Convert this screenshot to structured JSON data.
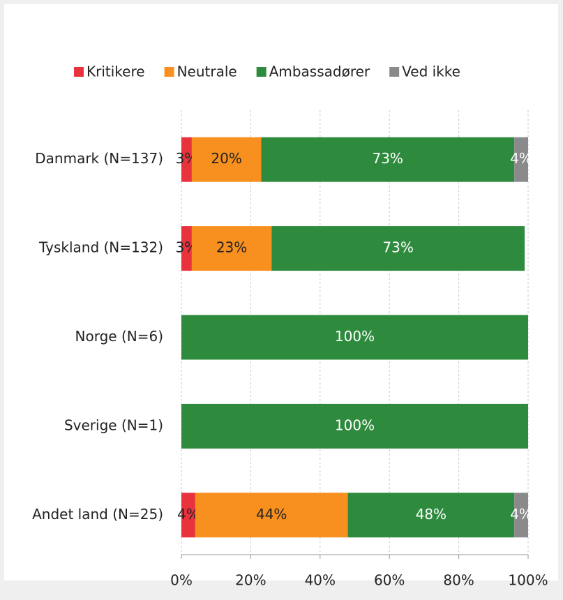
{
  "chart_data": {
    "type": "stacked_bar_horizontal",
    "categories": [
      "Danmark (N=137)",
      "Tyskland (N=132)",
      "Norge (N=6)",
      "Sverige (N=1)",
      "Andet land (N=25)"
    ],
    "series": [
      {
        "name": "Kritikere",
        "color": "#e8323c",
        "values": [
          3,
          3,
          null,
          null,
          4
        ],
        "value_labels": [
          "3%",
          "3%",
          null,
          null,
          "4%"
        ]
      },
      {
        "name": "Neutrale",
        "color": "#f7901e",
        "values": [
          20,
          23,
          null,
          null,
          44
        ],
        "value_labels": [
          "20%",
          "23%",
          null,
          null,
          "44%"
        ]
      },
      {
        "name": "Ambassadører",
        "color": "#2e8b3e",
        "values": [
          73,
          73,
          100,
          100,
          48
        ],
        "value_labels": [
          "73%",
          "73%",
          "100%",
          "100%",
          "48%"
        ]
      },
      {
        "name": "Ved ikke",
        "color": "#8a8a8c",
        "values": [
          4,
          null,
          null,
          null,
          4
        ],
        "value_labels": [
          "4%",
          null,
          null,
          null,
          "4%"
        ]
      }
    ],
    "xlim": [
      0,
      100
    ],
    "xticks": [
      {
        "value": 0,
        "label": "0%"
      },
      {
        "value": 20,
        "label": "20%"
      },
      {
        "value": 40,
        "label": "40%"
      },
      {
        "value": 60,
        "label": "60%"
      },
      {
        "value": 80,
        "label": "80%"
      },
      {
        "value": 100,
        "label": "100%"
      }
    ],
    "grid": true,
    "legend": "top"
  }
}
